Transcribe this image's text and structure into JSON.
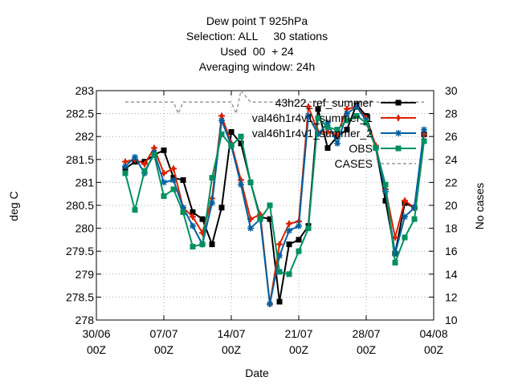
{
  "chart_data": {
    "type": "line",
    "title_lines": [
      "Dew point T 925hPa",
      "Selection: ALL     30 stations",
      "Used  00  + 24",
      "Averaging window: 24h"
    ],
    "xlabel": "Date",
    "ylabel": "deg C",
    "y2label": "No cases",
    "x_ticks": [
      "30/06\n00Z",
      "07/07\n00Z",
      "14/07\n00Z",
      "21/07\n00Z",
      "28/07\n00Z",
      "04/08\n00Z"
    ],
    "x_range_days": [
      0,
      35
    ],
    "ylim": [
      278,
      283
    ],
    "y_ticks": [
      "278",
      "278.5",
      "279",
      "279.5",
      "280",
      "280.5",
      "281",
      "281.5",
      "282",
      "282.5",
      "283"
    ],
    "y2lim": [
      10,
      30
    ],
    "y2_ticks": [
      "10",
      "12",
      "14",
      "16",
      "18",
      "20",
      "22",
      "24",
      "26",
      "28",
      "30"
    ],
    "grid": true,
    "legend_position": "top-right",
    "series": [
      {
        "name": "43h22_ref_summer",
        "color": "#000000",
        "marker": "square",
        "days": [
          3,
          4,
          5,
          6,
          7,
          8,
          9,
          10,
          11,
          12,
          13,
          14,
          15,
          16,
          17,
          18,
          19,
          20,
          21,
          22,
          23,
          24,
          25,
          26,
          27,
          28,
          29,
          30,
          31,
          32,
          33,
          34
        ],
        "values": [
          281.3,
          281.45,
          281.45,
          281.6,
          281.7,
          281.1,
          281.05,
          280.35,
          280.2,
          279.65,
          280.45,
          282.1,
          281.85,
          281.0,
          280.25,
          280.2,
          278.4,
          279.65,
          279.75,
          280.05,
          282.6,
          281.75,
          282.0,
          282.15,
          282.7,
          282.45,
          281.75,
          280.6,
          279.45,
          280.55,
          280.45,
          282.05
        ]
      },
      {
        "name": "val46h1r4v1_summer_1",
        "color": "#dd2200",
        "marker": "plus",
        "days": [
          3,
          4,
          5,
          6,
          7,
          8,
          9,
          10,
          11,
          12,
          13,
          14,
          15,
          16,
          17,
          18,
          19,
          20,
          21,
          22,
          23,
          24,
          25,
          26,
          27,
          28,
          29,
          30,
          31,
          32,
          33,
          34
        ],
        "values": [
          281.45,
          281.5,
          281.4,
          281.75,
          281.2,
          281.3,
          280.45,
          280.25,
          279.9,
          280.65,
          282.45,
          281.85,
          281.05,
          280.2,
          280.3,
          278.35,
          279.65,
          280.1,
          280.15,
          282.65,
          282.1,
          282.1,
          282.05,
          282.6,
          282.65,
          282.4,
          281.8,
          280.85,
          279.8,
          280.6,
          280.45,
          282.05
        ]
      },
      {
        "name": "val46h1r4v1_summer_2",
        "color": "#0060a0",
        "marker": "star",
        "days": [
          3,
          4,
          5,
          6,
          7,
          8,
          9,
          10,
          11,
          12,
          13,
          14,
          15,
          16,
          17,
          18,
          19,
          20,
          21,
          22,
          23,
          24,
          25,
          26,
          27,
          28,
          29,
          30,
          31,
          32,
          33,
          34
        ],
        "values": [
          281.35,
          281.55,
          281.2,
          281.65,
          281.0,
          281.05,
          280.45,
          280.05,
          279.65,
          280.55,
          282.35,
          281.8,
          280.95,
          280.0,
          280.2,
          278.35,
          279.4,
          279.95,
          280.05,
          282.45,
          282.05,
          282.3,
          281.85,
          282.5,
          282.65,
          282.35,
          281.75,
          280.8,
          279.45,
          280.25,
          280.45,
          282.15
        ]
      },
      {
        "name": "OBS",
        "color": "#009060",
        "marker": "square",
        "days": [
          3,
          4,
          5,
          6,
          7,
          8,
          9,
          10,
          11,
          12,
          13,
          14,
          15,
          16,
          17,
          18,
          19,
          20,
          21,
          22,
          23,
          24,
          25,
          26,
          27,
          28,
          29,
          30,
          31,
          32,
          33,
          34
        ],
        "values": [
          281.2,
          280.4,
          281.25,
          281.6,
          280.7,
          280.85,
          280.35,
          279.6,
          279.65,
          281.1,
          282.05,
          281.8,
          282.0,
          281.0,
          280.2,
          280.5,
          279.05,
          279.0,
          279.5,
          280.0,
          282.4,
          282.2,
          282.15,
          282.35,
          282.45,
          282.3,
          281.75,
          280.95,
          279.25,
          279.8,
          280.2,
          281.9
        ]
      },
      {
        "name": "CASES",
        "axis": "y2",
        "color": "#999999",
        "dashed": true,
        "days": [
          3,
          4,
          5,
          6,
          7,
          8,
          8.5,
          9,
          10,
          11,
          12,
          13,
          14,
          14.5,
          15,
          16,
          17,
          18,
          19,
          20,
          21,
          22,
          23,
          24,
          25,
          26,
          27,
          28,
          29,
          30,
          31,
          32,
          33,
          34
        ],
        "values": [
          29,
          29,
          29,
          29,
          29,
          29,
          28,
          29,
          29,
          29,
          29,
          29,
          29,
          28,
          30,
          29,
          29,
          29,
          29,
          29,
          29,
          29,
          29,
          29,
          29,
          29,
          29,
          29,
          29,
          29,
          29,
          29,
          29,
          29
        ]
      }
    ]
  }
}
